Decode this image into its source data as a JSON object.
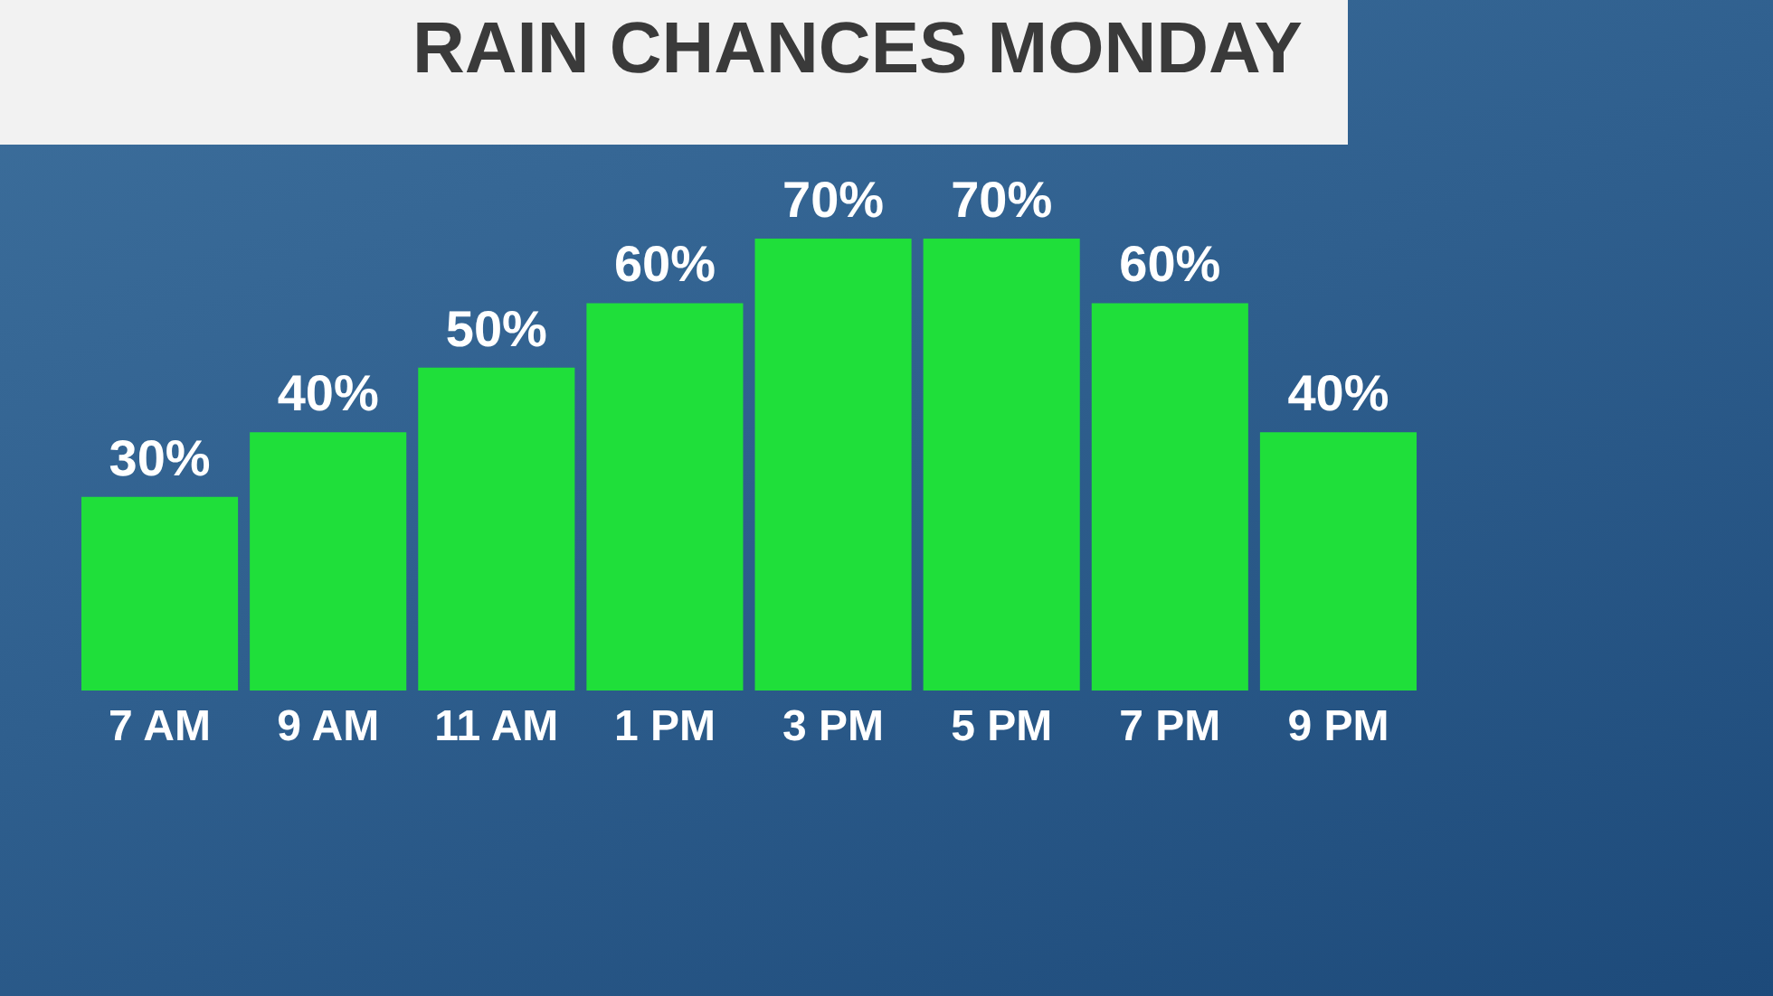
{
  "chart_data": {
    "type": "bar",
    "title": "RAIN CHANCES MONDAY",
    "categories": [
      "7 AM",
      "9 AM",
      "11 AM",
      "1 PM",
      "3 PM",
      "5 PM",
      "7 PM",
      "9 PM"
    ],
    "values": [
      30,
      40,
      50,
      60,
      70,
      70,
      60,
      40
    ],
    "value_labels": [
      "30%",
      "40%",
      "50%",
      "60%",
      "70%",
      "70%",
      "60%",
      "40%"
    ],
    "color": "#1fdf3a"
  }
}
